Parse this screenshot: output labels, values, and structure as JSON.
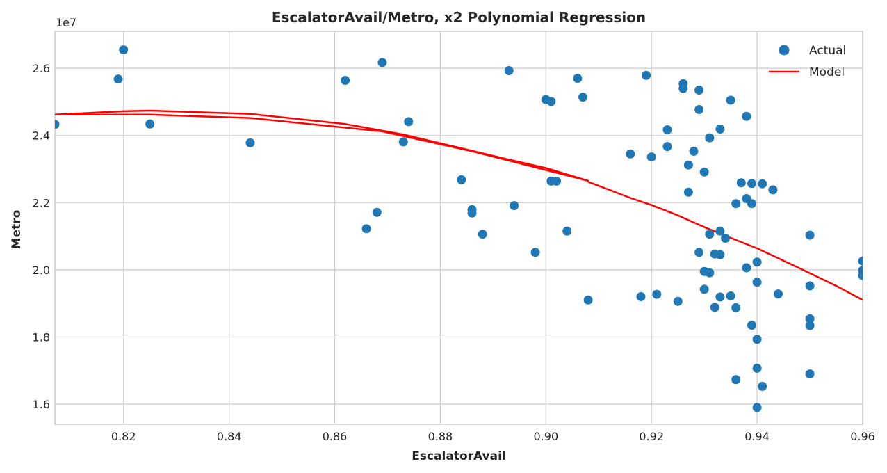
{
  "chart_data": {
    "type": "scatter",
    "title": "EscalatorAvail/Metro, x2 Polynomial Regression",
    "xlabel": "EscalatorAvail",
    "ylabel": "Metro",
    "y_offset_text": "1e7",
    "xlim": [
      0.807,
      0.96
    ],
    "ylim": [
      15400000.0,
      27100000.0
    ],
    "x_ticks": [
      0.82,
      0.84,
      0.86,
      0.88,
      0.9,
      0.92,
      0.94,
      0.96
    ],
    "x_tick_labels": [
      "0.82",
      "0.84",
      "0.86",
      "0.88",
      "0.90",
      "0.92",
      "0.94",
      "0.96"
    ],
    "y_ticks": [
      16000000.0,
      18000000.0,
      20000000.0,
      22000000.0,
      24000000.0,
      26000000.0
    ],
    "y_tick_labels": [
      "1.6",
      "1.8",
      "2.0",
      "2.2",
      "2.4",
      "2.6"
    ],
    "grid": true,
    "legend_position": "top-right",
    "colors": {
      "actual": "#1f77b4",
      "model": "#ff0000"
    },
    "series": [
      {
        "name": "Actual",
        "kind": "scatter",
        "x": [
          0.807,
          0.819,
          0.82,
          0.825,
          0.844,
          0.862,
          0.866,
          0.868,
          0.869,
          0.873,
          0.874,
          0.884,
          0.886,
          0.886,
          0.888,
          0.893,
          0.894,
          0.898,
          0.9,
          0.901,
          0.901,
          0.902,
          0.904,
          0.906,
          0.907,
          0.908,
          0.916,
          0.918,
          0.919,
          0.92,
          0.921,
          0.923,
          0.923,
          0.925,
          0.926,
          0.926,
          0.927,
          0.927,
          0.928,
          0.929,
          0.929,
          0.929,
          0.93,
          0.93,
          0.93,
          0.931,
          0.931,
          0.931,
          0.932,
          0.932,
          0.933,
          0.933,
          0.933,
          0.933,
          0.934,
          0.935,
          0.935,
          0.936,
          0.936,
          0.936,
          0.937,
          0.938,
          0.938,
          0.938,
          0.939,
          0.939,
          0.939,
          0.94,
          0.94,
          0.94,
          0.94,
          0.94,
          0.941,
          0.941,
          0.943,
          0.944,
          0.95,
          0.95,
          0.95,
          0.95,
          0.95,
          0.96,
          0.96,
          0.96
        ],
        "y": [
          24330000.0,
          25680000.0,
          26550000.0,
          24340000.0,
          23780000.0,
          25640000.0,
          21220000.0,
          21710000.0,
          26170000.0,
          23810000.0,
          24410000.0,
          22680000.0,
          21790000.0,
          21690000.0,
          21060000.0,
          25930000.0,
          21910000.0,
          20520000.0,
          25070000.0,
          25010000.0,
          22640000.0,
          22640000.0,
          21150000.0,
          25700000.0,
          25140000.0,
          19100000.0,
          23450000.0,
          19200000.0,
          25790000.0,
          23360000.0,
          19270000.0,
          24170000.0,
          23670000.0,
          19060000.0,
          25540000.0,
          25400000.0,
          23120000.0,
          22310000.0,
          23530000.0,
          25350000.0,
          24770000.0,
          20520000.0,
          22910000.0,
          19950000.0,
          19420000.0,
          23930000.0,
          21060000.0,
          19910000.0,
          20470000.0,
          18880000.0,
          24190000.0,
          21150000.0,
          20450000.0,
          19190000.0,
          20940000.0,
          25050000.0,
          19220000.0,
          21970000.0,
          18870000.0,
          16730000.0,
          22590000.0,
          24570000.0,
          22120000.0,
          20060000.0,
          22570000.0,
          21970000.0,
          18350000.0,
          20230000.0,
          19630000.0,
          17930000.0,
          17070000.0,
          15900000.0,
          22560000.0,
          16530000.0,
          22380000.0,
          19280000.0,
          21030000.0,
          19520000.0,
          18540000.0,
          18340000.0,
          16900000.0,
          20260000.0,
          19980000.0,
          19830000.0
        ]
      },
      {
        "name": "Model",
        "kind": "line",
        "x": [
          0.807,
          0.82,
          0.825,
          0.844,
          0.862,
          0.873,
          0.884,
          0.893,
          0.9,
          0.908,
          0.9,
          0.886,
          0.869,
          0.844,
          0.825,
          0.807
        ],
        "y": [
          24620000.0,
          24720000.0,
          24740000.0,
          24640000.0,
          24340000.0,
          24030000.0,
          23620000.0,
          23280000.0,
          23030000.0,
          22650000.0,
          22970000.0,
          23530000.0,
          24120000.0,
          24520000.0,
          24620000.0,
          24620000.0
        ]
      },
      {
        "name": "",
        "kind": "line",
        "x": [
          0.908,
          0.916,
          0.92,
          0.925,
          0.93,
          0.935,
          0.94,
          0.945,
          0.95,
          0.955,
          0.96
        ],
        "y": [
          22620000.0,
          22140000.0,
          21930000.0,
          21620000.0,
          21270000.0,
          20950000.0,
          20640000.0,
          20270000.0,
          19900000.0,
          19520000.0,
          19100000.0
        ]
      }
    ]
  }
}
